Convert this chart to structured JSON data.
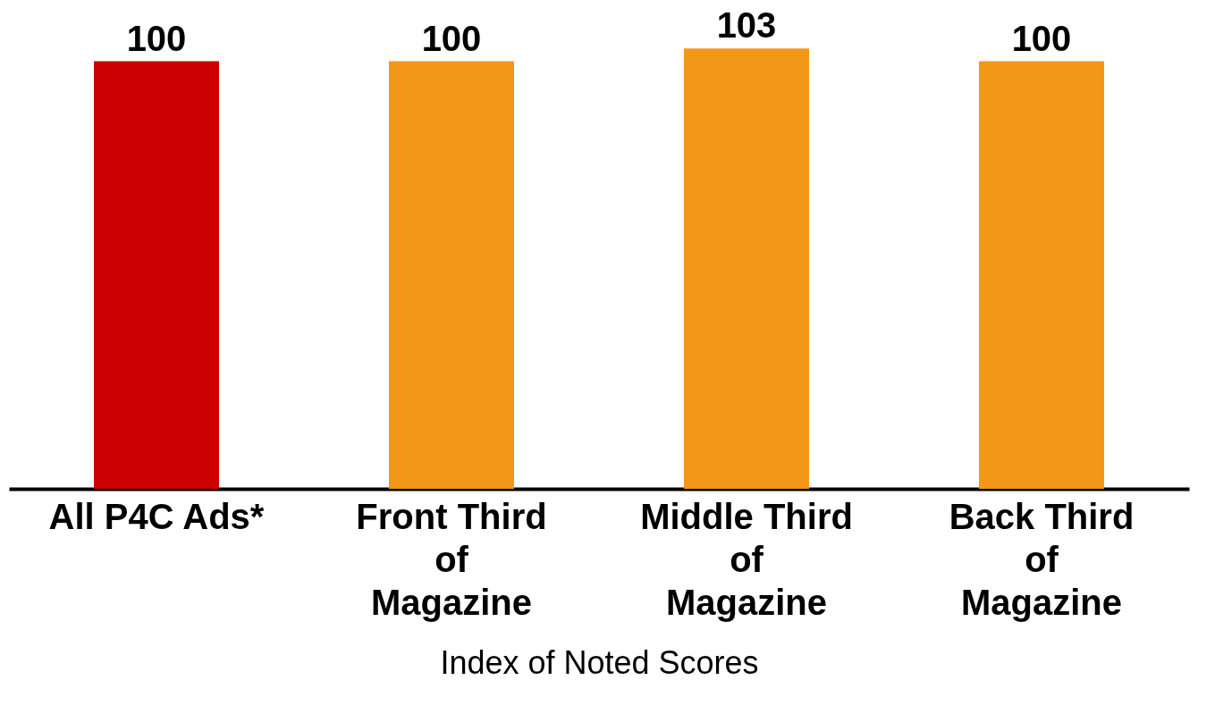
{
  "chart_data": {
    "type": "bar",
    "xlabel": "Index of Noted Scores",
    "categories": [
      "All P4C Ads*",
      "Front Third\nof\nMagazine",
      "Middle Third\nof\nMagazine",
      "Back Third\nof\nMagazine"
    ],
    "values": [
      100,
      100,
      103,
      100
    ],
    "colors": [
      "#cc0000",
      "#f39719",
      "#f39719",
      "#f39719"
    ],
    "data_labels": true
  }
}
